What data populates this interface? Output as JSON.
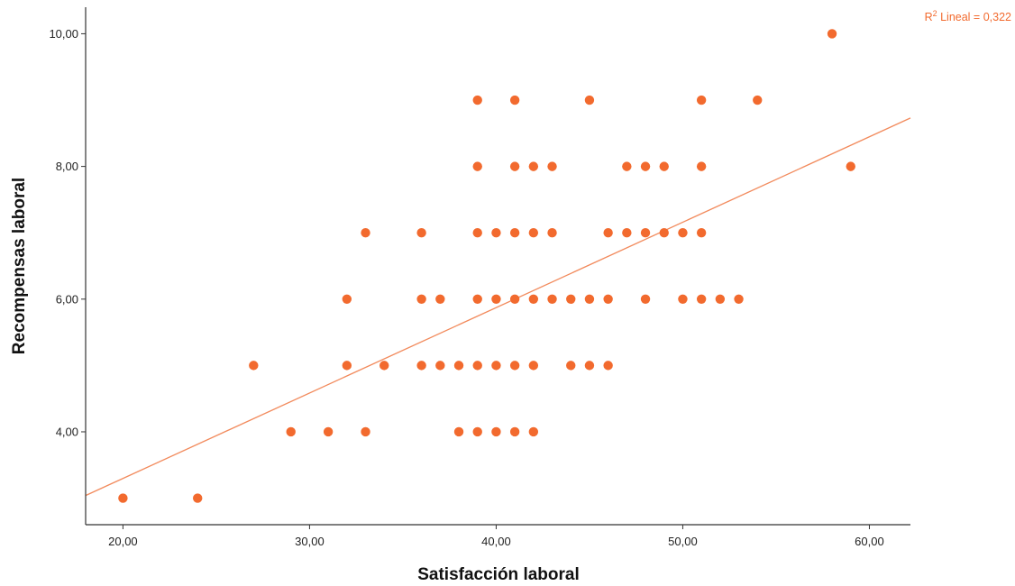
{
  "chart_data": {
    "type": "scatter",
    "title": "",
    "xlabel": "Satisfacción laboral",
    "ylabel": "Recompensas laboral",
    "xlim": [
      18,
      62.2
    ],
    "ylim": [
      2.6,
      10.4
    ],
    "x_ticks": [
      20,
      30,
      40,
      50,
      60
    ],
    "x_tick_labels": [
      "20,00",
      "30,00",
      "40,00",
      "50,00",
      "60,00"
    ],
    "y_ticks": [
      4,
      6,
      8,
      10
    ],
    "y_tick_labels": [
      "4,00",
      "6,00",
      "8,00",
      "10,00"
    ],
    "grid": false,
    "point_color": "#f26a2e",
    "line_color": "#f28a5c",
    "fit_line": {
      "label_prefix": "R",
      "label_sup": "2",
      "label_suffix": " Lineal = 0,322",
      "x": [
        18,
        62.2
      ],
      "y": [
        3.04,
        8.73
      ]
    },
    "points": [
      {
        "x": 20,
        "y": 3
      },
      {
        "x": 24,
        "y": 3
      },
      {
        "x": 27,
        "y": 5
      },
      {
        "x": 29,
        "y": 4
      },
      {
        "x": 31,
        "y": 4
      },
      {
        "x": 32,
        "y": 6
      },
      {
        "x": 32,
        "y": 5
      },
      {
        "x": 33,
        "y": 7
      },
      {
        "x": 33,
        "y": 4
      },
      {
        "x": 34,
        "y": 5
      },
      {
        "x": 36,
        "y": 7
      },
      {
        "x": 36,
        "y": 6
      },
      {
        "x": 36,
        "y": 5
      },
      {
        "x": 37,
        "y": 6
      },
      {
        "x": 37,
        "y": 5
      },
      {
        "x": 38,
        "y": 5
      },
      {
        "x": 38,
        "y": 4
      },
      {
        "x": 39,
        "y": 9
      },
      {
        "x": 39,
        "y": 8
      },
      {
        "x": 39,
        "y": 7
      },
      {
        "x": 39,
        "y": 6
      },
      {
        "x": 39,
        "y": 5
      },
      {
        "x": 39,
        "y": 4
      },
      {
        "x": 40,
        "y": 7
      },
      {
        "x": 40,
        "y": 6
      },
      {
        "x": 40,
        "y": 5
      },
      {
        "x": 40,
        "y": 4
      },
      {
        "x": 41,
        "y": 9
      },
      {
        "x": 41,
        "y": 8
      },
      {
        "x": 41,
        "y": 7
      },
      {
        "x": 41,
        "y": 6
      },
      {
        "x": 41,
        "y": 5
      },
      {
        "x": 41,
        "y": 4
      },
      {
        "x": 42,
        "y": 8
      },
      {
        "x": 42,
        "y": 7
      },
      {
        "x": 42,
        "y": 6
      },
      {
        "x": 42,
        "y": 5
      },
      {
        "x": 42,
        "y": 4
      },
      {
        "x": 43,
        "y": 8
      },
      {
        "x": 43,
        "y": 7
      },
      {
        "x": 43,
        "y": 6
      },
      {
        "x": 44,
        "y": 6
      },
      {
        "x": 44,
        "y": 5
      },
      {
        "x": 45,
        "y": 9
      },
      {
        "x": 45,
        "y": 6
      },
      {
        "x": 45,
        "y": 5
      },
      {
        "x": 46,
        "y": 7
      },
      {
        "x": 46,
        "y": 6
      },
      {
        "x": 46,
        "y": 5
      },
      {
        "x": 47,
        "y": 8
      },
      {
        "x": 47,
        "y": 7
      },
      {
        "x": 48,
        "y": 8
      },
      {
        "x": 48,
        "y": 7
      },
      {
        "x": 48,
        "y": 6
      },
      {
        "x": 49,
        "y": 8
      },
      {
        "x": 49,
        "y": 7
      },
      {
        "x": 50,
        "y": 7
      },
      {
        "x": 50,
        "y": 6
      },
      {
        "x": 51,
        "y": 9
      },
      {
        "x": 51,
        "y": 8
      },
      {
        "x": 51,
        "y": 7
      },
      {
        "x": 51,
        "y": 6
      },
      {
        "x": 52,
        "y": 6
      },
      {
        "x": 53,
        "y": 6
      },
      {
        "x": 54,
        "y": 9
      },
      {
        "x": 58,
        "y": 10
      },
      {
        "x": 59,
        "y": 8
      }
    ]
  }
}
